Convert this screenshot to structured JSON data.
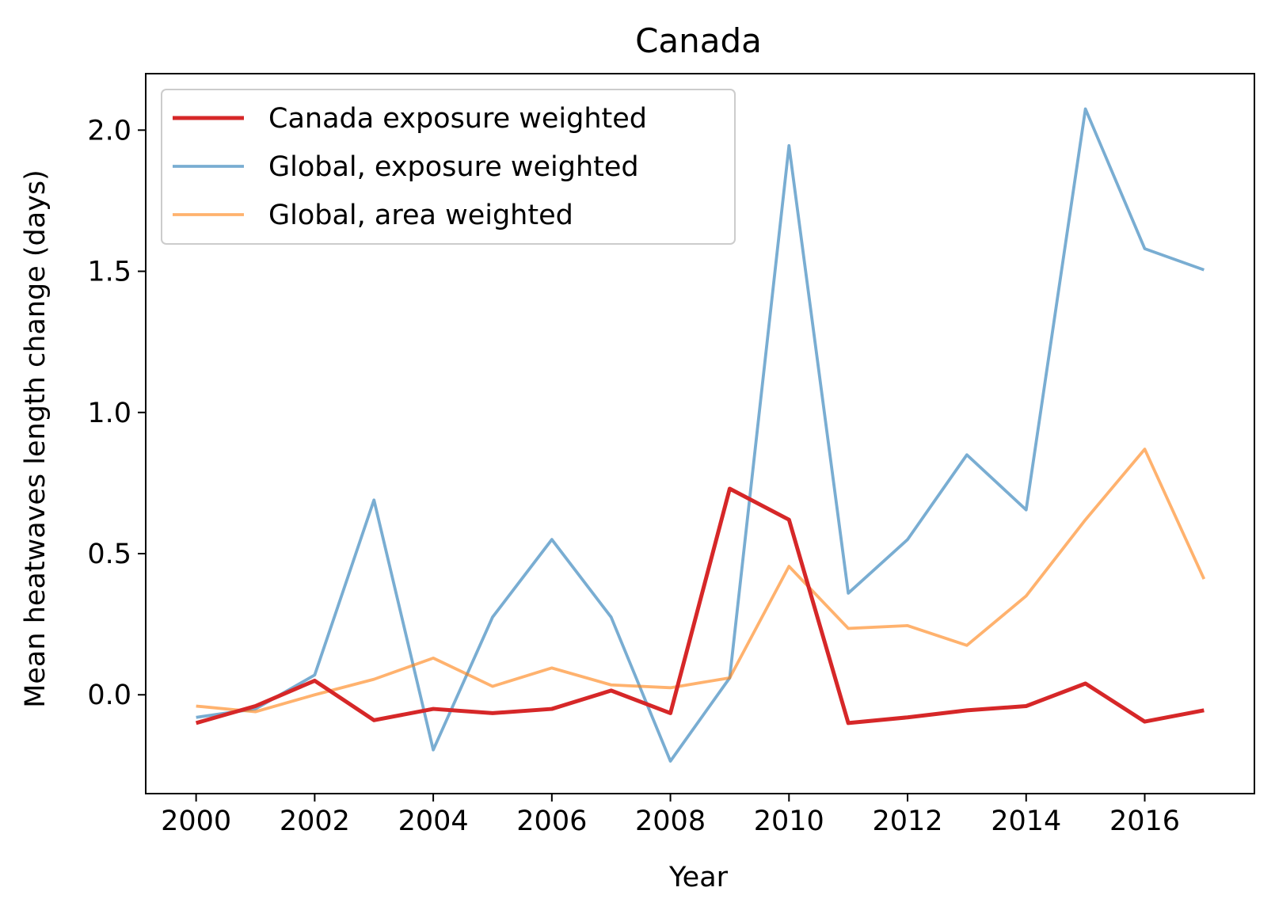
{
  "chart_data": {
    "type": "line",
    "title": "Canada",
    "xlabel": "Year",
    "ylabel": "Mean heatwaves length change (days)",
    "xlim": [
      1999.15,
      2017.85
    ],
    "ylim": [
      -0.35,
      2.2
    ],
    "xticks": [
      2000,
      2002,
      2004,
      2006,
      2008,
      2010,
      2012,
      2014,
      2016
    ],
    "xtick_labels": [
      "2000",
      "2002",
      "2004",
      "2006",
      "2008",
      "2010",
      "2012",
      "2014",
      "2016"
    ],
    "yticks": [
      0.0,
      0.5,
      1.0,
      1.5,
      2.0
    ],
    "ytick_labels": [
      "0.0",
      "0.5",
      "1.0",
      "1.5",
      "2.0"
    ],
    "grid": false,
    "legend_position": "top-left",
    "x": [
      2000,
      2001,
      2002,
      2003,
      2004,
      2005,
      2006,
      2007,
      2008,
      2009,
      2010,
      2011,
      2012,
      2013,
      2014,
      2015,
      2016,
      2017
    ],
    "series": [
      {
        "name": "Canada exposure weighted",
        "color": "#d62728",
        "opacity": 1.0,
        "width": "thick",
        "values": [
          -0.1,
          -0.04,
          0.05,
          -0.09,
          -0.05,
          -0.065,
          -0.05,
          0.015,
          -0.065,
          0.73,
          0.62,
          -0.1,
          -0.08,
          -0.055,
          -0.04,
          0.04,
          -0.095,
          -0.055
        ]
      },
      {
        "name": "Global, exposure weighted",
        "color": "#1f77b4",
        "opacity": 0.6,
        "width": "normal",
        "values": [
          -0.08,
          -0.05,
          0.07,
          0.69,
          -0.195,
          0.275,
          0.55,
          0.275,
          -0.235,
          0.06,
          1.945,
          0.36,
          0.55,
          0.85,
          0.655,
          2.075,
          1.58,
          1.505
        ]
      },
      {
        "name": "Global, area weighted",
        "color": "#ff7f0e",
        "opacity": 0.6,
        "width": "normal",
        "values": [
          -0.04,
          -0.06,
          0.0,
          0.055,
          0.13,
          0.03,
          0.095,
          0.035,
          0.025,
          0.06,
          0.455,
          0.235,
          0.245,
          0.175,
          0.35,
          0.62,
          0.87,
          0.41
        ]
      }
    ]
  }
}
